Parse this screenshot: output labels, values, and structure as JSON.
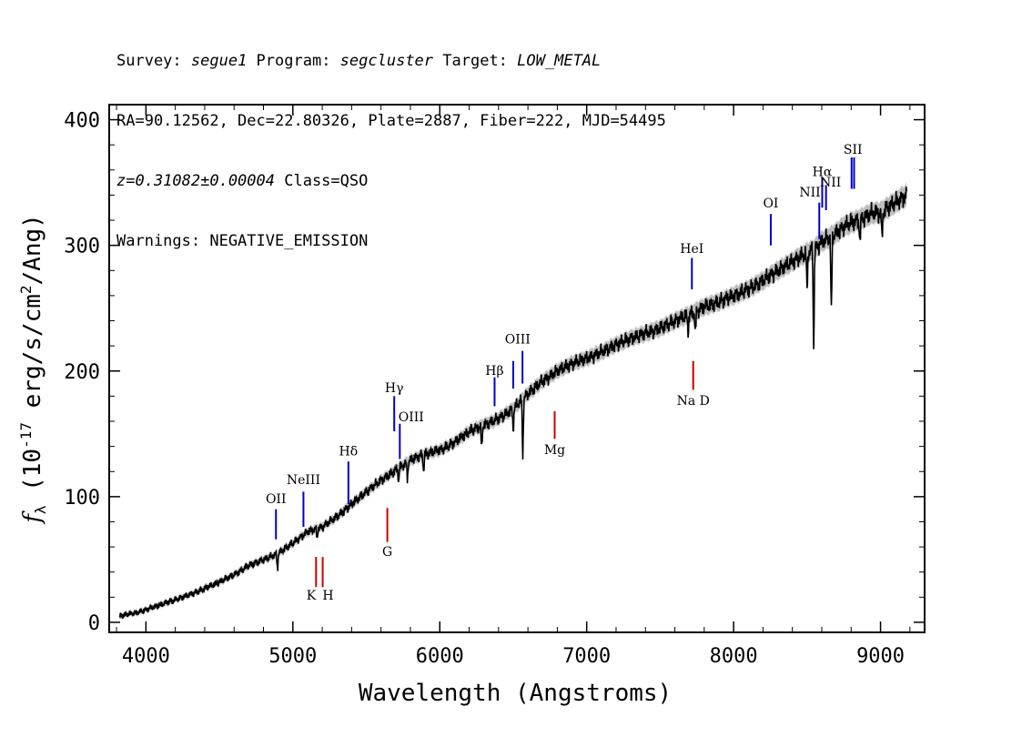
{
  "header": {
    "line1": {
      "survey_label": "Survey: ",
      "survey": "segue1",
      "program_label": " Program: ",
      "program": "segcluster",
      "target_label": " Target: ",
      "target": "LOW_METAL"
    },
    "line2": "RA=90.12562, Dec=22.80326, Plate=2887, Fiber=222, MJD=54495",
    "line3": {
      "z": "z=0.31082±0.00004",
      "class": " Class=QSO"
    },
    "line4": "Warnings: NEGATIVE_EMISSION"
  },
  "chart_data": {
    "type": "line",
    "title": "",
    "xlabel": "Wavelength (Angstroms)",
    "ylabel_parts": {
      "f": "f",
      "sub": "λ",
      "pre": " (10",
      "exp1": "-17",
      "mid": " erg/s/cm",
      "exp2": "2",
      "post": "/Ang)"
    },
    "xlim": [
      3750,
      9300
    ],
    "ylim": [
      -8,
      412
    ],
    "xticks": [
      4000,
      5000,
      6000,
      7000,
      8000,
      9000
    ],
    "yticks": [
      0,
      100,
      200,
      300,
      400
    ],
    "series": [
      {
        "color": "#000000",
        "error_color": "#b0b0b0",
        "x": [
          3820,
          3900,
          3950,
          4000,
          4100,
          4200,
          4300,
          4400,
          4500,
          4600,
          4700,
          4800,
          4850,
          4900,
          5000,
          5100,
          5200,
          5300,
          5400,
          5500,
          5600,
          5700,
          5800,
          5900,
          6000,
          6100,
          6200,
          6300,
          6400,
          6500,
          6600,
          6700,
          6800,
          6900,
          7000,
          7100,
          7200,
          7300,
          7400,
          7500,
          7600,
          7700,
          7800,
          7900,
          8000,
          8100,
          8200,
          8300,
          8400,
          8450,
          8500,
          8550,
          8600,
          8650,
          8700,
          8750,
          8800,
          8850,
          8900,
          8950,
          9000,
          9050,
          9100,
          9150,
          9180
        ],
        "y": [
          5,
          7,
          8,
          10,
          14,
          18,
          22,
          27,
          32,
          38,
          45,
          50,
          52,
          55,
          63,
          72,
          76,
          84,
          94,
          104,
          113,
          121,
          129,
          134,
          137,
          143,
          152,
          157,
          162,
          170,
          182,
          192,
          200,
          206,
          210,
          215,
          221,
          226,
          230,
          234,
          240,
          245,
          251,
          255,
          260,
          265,
          272,
          280,
          287,
          291,
          294,
          297,
          303,
          306,
          310,
          315,
          318,
          320,
          323,
          326,
          326,
          330,
          334,
          338,
          340
        ]
      }
    ],
    "absorption_dips": [
      {
        "x": 4895,
        "depth": 12
      },
      {
        "x": 5165,
        "depth": 8
      },
      {
        "x": 5720,
        "depth": 10
      },
      {
        "x": 5780,
        "depth": 13
      },
      {
        "x": 5890,
        "depth": 13
      },
      {
        "x": 6285,
        "depth": 18
      },
      {
        "x": 6500,
        "depth": 16
      },
      {
        "x": 6565,
        "depth": 45
      },
      {
        "x": 7690,
        "depth": 14
      },
      {
        "x": 7740,
        "depth": 18
      },
      {
        "x": 8500,
        "depth": 30
      },
      {
        "x": 8545,
        "depth": 75
      },
      {
        "x": 8665,
        "depth": 60
      },
      {
        "x": 8860,
        "depth": 18
      },
      {
        "x": 9010,
        "depth": 22
      }
    ],
    "emission_lines": [
      {
        "label": "OII",
        "x": 4885,
        "y0": 66,
        "y1": 90,
        "label_y": 95
      },
      {
        "label": "NeIII",
        "x": 5072,
        "y0": 76,
        "y1": 104,
        "label_y": 110
      },
      {
        "label": "Hδ",
        "x": 5378,
        "y0": 94,
        "y1": 128,
        "label_y": 133
      },
      {
        "label": "Hγ",
        "x": 5690,
        "y0": 152,
        "y1": 180,
        "label_y": 183
      },
      {
        "label": "OIII",
        "x": 5728,
        "y0": 130,
        "y1": 158,
        "label_y": 160
      },
      {
        "label": "Hβ",
        "x": 6373,
        "y0": 172,
        "y1": 195,
        "label_y": 197
      },
      {
        "label": "OIII",
        "x": 6500,
        "y0": 186,
        "y1": 208,
        "label_y": 222
      },
      {
        "label": "OIII",
        "x": 6563,
        "y0": 190,
        "y1": 216,
        "label_y": 222
      },
      {
        "label": "HeI",
        "x": 7716,
        "y0": 265,
        "y1": 290,
        "label_y": 294
      },
      {
        "label": "OI",
        "x": 8253,
        "y0": 300,
        "y1": 325,
        "label_y": 330
      },
      {
        "label": "NII",
        "x": 8583,
        "y0": 305,
        "y1": 334,
        "label_y": 339
      },
      {
        "label": "Hα",
        "x": 8603,
        "y0": 330,
        "y1": 354,
        "label_y": 355
      },
      {
        "label": "NII",
        "x": 8629,
        "y0": 328,
        "y1": 348,
        "label_y": 347
      },
      {
        "label": "SII",
        "x": 8803,
        "y0": 345,
        "y1": 370,
        "label_y": 373
      },
      {
        "label": "SII",
        "x": 8820,
        "y0": 345,
        "y1": 370,
        "label_y": 373
      }
    ],
    "absorption_lines": [
      {
        "label": "K",
        "x": 5158,
        "y0": 28,
        "y1": 52,
        "label_y": 18
      },
      {
        "label": "H",
        "x": 5203,
        "y0": 28,
        "y1": 52,
        "label_y": 18
      },
      {
        "label": "G",
        "x": 5643,
        "y0": 64,
        "y1": 91,
        "label_y": 53
      },
      {
        "label": "Mg",
        "x": 6782,
        "y0": 146,
        "y1": 168,
        "label_y": 134
      },
      {
        "label": "Na D",
        "x": 7725,
        "y0": 185,
        "y1": 208,
        "label_y": 173
      }
    ],
    "colors": {
      "emission": "#0000cc",
      "absorption": "#cc0000",
      "axis": "#000000"
    }
  }
}
